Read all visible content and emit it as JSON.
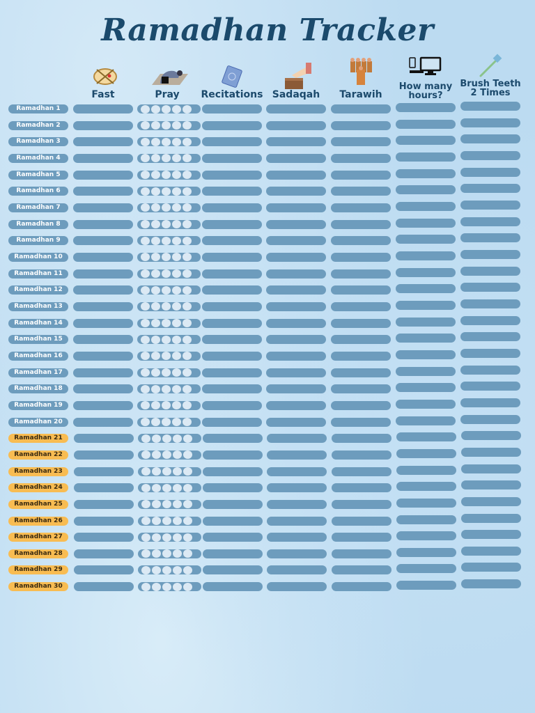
{
  "title": "Ramadhan Tracker",
  "columns": [
    {
      "label": "Fast",
      "icon": "fasting-plate-icon"
    },
    {
      "label": "Pray",
      "icon": "prayer-mat-icon"
    },
    {
      "label": "Recitations",
      "icon": "quran-icon"
    },
    {
      "label": "Sadaqah",
      "icon": "donation-box-icon"
    },
    {
      "label": "Tarawih",
      "icon": "congregation-icon"
    },
    {
      "label": "How many hours?",
      "icon": "devices-icon"
    },
    {
      "label": "Brush Teeth 2 Times",
      "icon": "toothbrush-icon"
    }
  ],
  "days": [
    "Ramadhan 1",
    "Ramadhan 2",
    "Ramadhan 3",
    "Ramadhan 4",
    "Ramadhan 5",
    "Ramadhan 6",
    "Ramadhan 7",
    "Ramadhan 8",
    "Ramadhan 9",
    "Ramadhan 10",
    "Ramadhan 11",
    "Ramadhan 12",
    "Ramadhan 13",
    "Ramadhan 14",
    "Ramadhan 15",
    "Ramadhan 16",
    "Ramadhan 17",
    "Ramadhan 18",
    "Ramadhan 19",
    "Ramadhan 20",
    "Ramadhan 21",
    "Ramadhan 22",
    "Ramadhan 23",
    "Ramadhan 24",
    "Ramadhan 25",
    "Ramadhan 26",
    "Ramadhan 27",
    "Ramadhan 28",
    "Ramadhan 29",
    "Ramadhan 30"
  ],
  "last_ten_from": 21,
  "prayers_per_day": 5,
  "colors": {
    "pill": "#6d9cbd",
    "highlight": "#f8bc52",
    "title": "#1b4a6c"
  }
}
